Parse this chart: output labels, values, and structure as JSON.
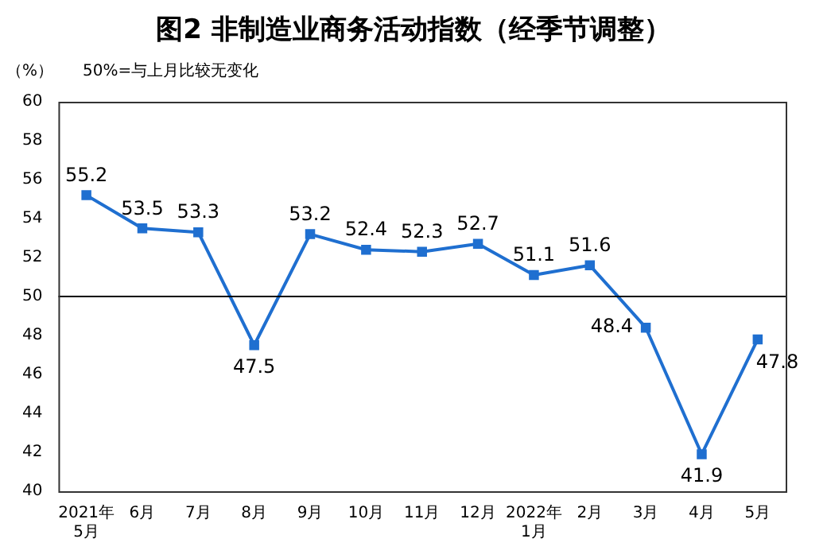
{
  "chart_data": {
    "type": "line",
    "title": "图2 非制造业商务活动指数（经季节调整）",
    "ylabel": "（%）",
    "annotations": [
      "50%=与上月比较无变化"
    ],
    "categories": [
      "2021年\n5月",
      "6月",
      "7月",
      "8月",
      "9月",
      "10月",
      "11月",
      "12月",
      "2022年\n1月",
      "2月",
      "3月",
      "4月",
      "5月"
    ],
    "series": [
      {
        "color": "#1f6fd0",
        "values": [
          55.2,
          53.5,
          53.3,
          47.5,
          53.2,
          52.4,
          52.3,
          52.7,
          51.1,
          51.6,
          48.4,
          41.9,
          47.8
        ]
      }
    ],
    "ylim": [
      40,
      60
    ],
    "yticks": [
      40,
      42,
      44,
      46,
      48,
      50,
      52,
      54,
      56,
      58,
      60
    ],
    "ref_lines": [
      {
        "axis": "y",
        "value": 50,
        "color": "#000000"
      }
    ],
    "data_labels": true,
    "marker": "square",
    "grid": false,
    "legend": false
  }
}
